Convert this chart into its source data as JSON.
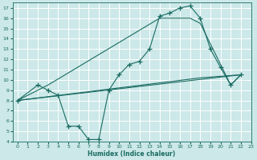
{
  "xlabel": "Humidex (Indice chaleur)",
  "bg_color": "#cce8e8",
  "grid_color": "#ffffff",
  "line_color": "#1a6b62",
  "xlim": [
    -0.5,
    23
  ],
  "ylim": [
    4,
    17.5
  ],
  "xticks": [
    0,
    1,
    2,
    3,
    4,
    5,
    6,
    7,
    8,
    9,
    10,
    11,
    12,
    13,
    14,
    15,
    16,
    17,
    18,
    19,
    20,
    21,
    22,
    23
  ],
  "yticks": [
    4,
    5,
    6,
    7,
    8,
    9,
    10,
    11,
    12,
    13,
    14,
    15,
    16,
    17
  ],
  "series": [
    {
      "x": [
        0,
        2,
        3,
        4,
        5,
        6,
        7,
        8,
        9,
        10,
        11,
        12,
        13,
        14,
        15,
        16,
        17,
        18,
        19,
        20,
        21,
        22
      ],
      "y": [
        8.0,
        9.5,
        9.0,
        8.5,
        5.5,
        5.5,
        4.2,
        4.2,
        9.0,
        10.5,
        11.5,
        11.8,
        13.0,
        16.2,
        16.5,
        17.0,
        17.2,
        16.0,
        13.0,
        11.2,
        9.5,
        10.5
      ],
      "marker": "+"
    },
    {
      "x": [
        0,
        22
      ],
      "y": [
        8.0,
        10.5
      ],
      "marker": null
    },
    {
      "x": [
        0,
        18,
        22
      ],
      "y": [
        8.0,
        10.2,
        10.5
      ],
      "marker": null
    },
    {
      "x": [
        0,
        3,
        14,
        17,
        18,
        21,
        22
      ],
      "y": [
        8.0,
        9.5,
        16.0,
        16.0,
        15.5,
        9.5,
        10.5
      ],
      "marker": null
    }
  ]
}
